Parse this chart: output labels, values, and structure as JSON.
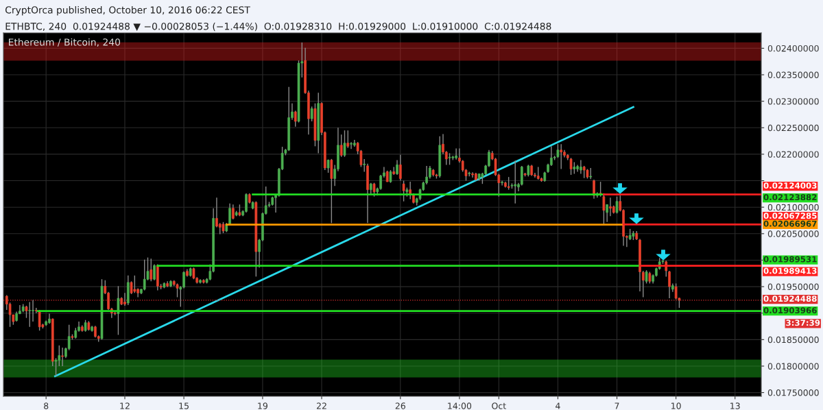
{
  "chart_data": {
    "type": "candlestick",
    "title": "Ethereum / Bitcoin, 240",
    "subtitle": "ETHBTC, 240  0.01924488 ▼ −0.00028053 (−1.44%)  O:0.01928310  H:0.01929000  L:0.01910000  C:0.01924488",
    "annotations": [
      "CryptOrca published, October 10, 2016 06:22 CEST",
      "3:37:39"
    ],
    "x": [
      "2016-09-06T00:00",
      "2016-09-06T04:00",
      "2016-09-06T08:00",
      "2016-09-06T12:00",
      "2016-09-06T16:00",
      "2016-09-06T20:00",
      "2016-09-07T00:00",
      "2016-09-07T04:00",
      "2016-09-07T08:00",
      "2016-09-07T12:00",
      "2016-09-07T16:00",
      "2016-09-07T20:00",
      "2016-09-08T00:00",
      "2016-09-08T04:00",
      "2016-09-08T08:00",
      "2016-09-08T12:00",
      "2016-09-08T16:00",
      "2016-09-08T20:00",
      "2016-09-09T00:00",
      "2016-09-09T04:00",
      "2016-09-09T08:00",
      "2016-09-09T12:00",
      "2016-09-09T16:00",
      "2016-09-09T20:00",
      "2016-09-10T00:00",
      "2016-09-10T04:00",
      "2016-09-10T08:00",
      "2016-09-10T12:00",
      "2016-09-10T16:00",
      "2016-09-10T20:00",
      "2016-09-11T00:00",
      "2016-09-11T04:00",
      "2016-09-11T08:00",
      "2016-09-11T12:00",
      "2016-09-11T16:00",
      "2016-09-11T20:00",
      "2016-09-12T00:00",
      "2016-09-12T04:00",
      "2016-09-12T08:00",
      "2016-09-12T12:00",
      "2016-09-12T16:00",
      "2016-09-12T20:00",
      "2016-09-13T00:00",
      "2016-09-13T04:00",
      "2016-09-13T08:00",
      "2016-09-13T12:00",
      "2016-09-13T16:00",
      "2016-09-13T20:00",
      "2016-09-14T00:00",
      "2016-09-14T04:00",
      "2016-09-14T08:00",
      "2016-09-14T12:00",
      "2016-09-14T16:00",
      "2016-09-14T20:00",
      "2016-09-15T00:00",
      "2016-09-15T04:00",
      "2016-09-15T08:00",
      "2016-09-15T12:00",
      "2016-09-15T16:00",
      "2016-09-15T20:00",
      "2016-09-16T00:00",
      "2016-09-16T04:00",
      "2016-09-16T08:00",
      "2016-09-16T12:00",
      "2016-09-16T16:00",
      "2016-09-16T20:00",
      "2016-09-17T00:00",
      "2016-09-17T04:00",
      "2016-09-17T08:00",
      "2016-09-17T12:00",
      "2016-09-17T16:00",
      "2016-09-17T20:00",
      "2016-09-18T00:00",
      "2016-09-18T04:00",
      "2016-09-18T08:00",
      "2016-09-18T12:00",
      "2016-09-18T16:00",
      "2016-09-18T20:00",
      "2016-09-19T00:00",
      "2016-09-19T04:00",
      "2016-09-19T08:00",
      "2016-09-19T12:00",
      "2016-09-19T16:00",
      "2016-09-19T20:00",
      "2016-09-20T00:00",
      "2016-09-20T04:00",
      "2016-09-20T08:00",
      "2016-09-20T12:00",
      "2016-09-20T16:00",
      "2016-09-20T20:00",
      "2016-09-21T00:00",
      "2016-09-21T04:00",
      "2016-09-21T08:00",
      "2016-09-21T12:00",
      "2016-09-21T16:00",
      "2016-09-21T20:00",
      "2016-09-22T00:00",
      "2016-09-22T04:00",
      "2016-09-22T08:00",
      "2016-09-22T12:00",
      "2016-09-22T16:00",
      "2016-09-22T20:00",
      "2016-09-23T00:00",
      "2016-09-23T04:00",
      "2016-09-23T08:00",
      "2016-09-23T12:00",
      "2016-09-23T16:00",
      "2016-09-23T20:00",
      "2016-09-24T00:00",
      "2016-09-24T04:00",
      "2016-09-24T08:00",
      "2016-09-24T12:00",
      "2016-09-24T16:00",
      "2016-09-24T20:00",
      "2016-09-25T00:00",
      "2016-09-25T04:00",
      "2016-09-25T08:00",
      "2016-09-25T12:00",
      "2016-09-25T16:00",
      "2016-09-25T20:00",
      "2016-09-26T00:00",
      "2016-09-26T04:00",
      "2016-09-26T08:00",
      "2016-09-26T12:00",
      "2016-09-26T16:00",
      "2016-09-26T20:00",
      "2016-09-27T00:00",
      "2016-09-27T04:00",
      "2016-09-27T08:00",
      "2016-09-27T12:00",
      "2016-09-27T16:00",
      "2016-09-27T20:00",
      "2016-09-28T00:00",
      "2016-09-28T04:00",
      "2016-09-28T08:00",
      "2016-09-28T12:00",
      "2016-09-28T16:00",
      "2016-09-28T20:00",
      "2016-09-29T00:00",
      "2016-09-29T04:00",
      "2016-09-29T08:00",
      "2016-09-29T12:00",
      "2016-09-29T16:00",
      "2016-09-29T20:00",
      "2016-09-30T00:00",
      "2016-09-30T04:00",
      "2016-09-30T08:00",
      "2016-09-30T12:00",
      "2016-09-30T16:00",
      "2016-09-30T20:00",
      "2016-10-01T00:00",
      "2016-10-01T04:00",
      "2016-10-01T08:00",
      "2016-10-01T12:00",
      "2016-10-01T16:00",
      "2016-10-01T20:00",
      "2016-10-02T00:00",
      "2016-10-02T04:00",
      "2016-10-02T08:00",
      "2016-10-02T12:00",
      "2016-10-02T16:00",
      "2016-10-02T20:00",
      "2016-10-03T00:00",
      "2016-10-03T04:00",
      "2016-10-03T08:00",
      "2016-10-03T12:00",
      "2016-10-03T16:00",
      "2016-10-03T20:00",
      "2016-10-04T00:00",
      "2016-10-04T04:00",
      "2016-10-04T08:00",
      "2016-10-04T12:00",
      "2016-10-04T16:00",
      "2016-10-04T20:00",
      "2016-10-05T00:00",
      "2016-10-05T04:00",
      "2016-10-05T08:00",
      "2016-10-05T12:00",
      "2016-10-05T16:00",
      "2016-10-05T20:00",
      "2016-10-06T00:00",
      "2016-10-06T04:00",
      "2016-10-06T08:00",
      "2016-10-06T12:00",
      "2016-10-06T16:00",
      "2016-10-06T20:00",
      "2016-10-07T00:00",
      "2016-10-07T04:00",
      "2016-10-07T08:00",
      "2016-10-07T12:00",
      "2016-10-07T16:00",
      "2016-10-07T20:00",
      "2016-10-08T00:00",
      "2016-10-08T04:00",
      "2016-10-08T08:00",
      "2016-10-08T12:00",
      "2016-10-08T16:00",
      "2016-10-08T20:00",
      "2016-10-09T00:00",
      "2016-10-09T04:00",
      "2016-10-09T08:00",
      "2016-10-09T12:00",
      "2016-10-09T16:00",
      "2016-10-09T20:00",
      "2016-10-10T00:00",
      "2016-10-10T04:00"
    ],
    "ohlc": [
      [
        0.01932,
        0.01934,
        0.01906,
        0.01917
      ],
      [
        0.01917,
        0.0192,
        0.01874,
        0.01897
      ],
      [
        0.01897,
        0.01897,
        0.01878,
        0.01884
      ],
      [
        0.01886,
        0.01903,
        0.01884,
        0.01899
      ],
      [
        0.01899,
        0.01915,
        0.01898,
        0.01904
      ],
      [
        0.01904,
        0.01917,
        0.01902,
        0.01912
      ],
      [
        0.01912,
        0.01914,
        0.01891,
        0.01904
      ],
      [
        0.01904,
        0.01921,
        0.01874,
        0.01904
      ],
      [
        0.01904,
        0.01925,
        0.01884,
        0.01905
      ],
      [
        0.01905,
        0.0191,
        0.019,
        0.01904
      ],
      [
        0.01904,
        0.01906,
        0.01867,
        0.01874
      ],
      [
        0.01878,
        0.0188,
        0.01871,
        0.01874
      ],
      [
        0.01878,
        0.01886,
        0.01876,
        0.01884
      ],
      [
        0.01882,
        0.01899,
        0.0188,
        0.01889
      ],
      [
        0.01889,
        0.0189,
        0.018,
        0.01809
      ],
      [
        0.01809,
        0.01815,
        0.01781,
        0.01811
      ],
      [
        0.01811,
        0.01839,
        0.018,
        0.0182
      ],
      [
        0.01819,
        0.01835,
        0.018,
        0.01818
      ],
      [
        0.01818,
        0.01835,
        0.01815,
        0.01833
      ],
      [
        0.01833,
        0.01878,
        0.0183,
        0.01856
      ],
      [
        0.01856,
        0.0186,
        0.0185,
        0.01854
      ],
      [
        0.01854,
        0.01872,
        0.01852,
        0.01867
      ],
      [
        0.01867,
        0.01884,
        0.01865,
        0.01874
      ],
      [
        0.01874,
        0.01877,
        0.01865,
        0.01867
      ],
      [
        0.01867,
        0.01887,
        0.01865,
        0.01882
      ],
      [
        0.01882,
        0.01885,
        0.01867,
        0.01869
      ],
      [
        0.01867,
        0.01876,
        0.01865,
        0.01874
      ],
      [
        0.01874,
        0.01876,
        0.01854,
        0.01856
      ],
      [
        0.01856,
        0.01858,
        0.01846,
        0.01852
      ],
      [
        0.01852,
        0.01964,
        0.0185,
        0.01951
      ],
      [
        0.01951,
        0.01962,
        0.01936,
        0.01938
      ],
      [
        0.01938,
        0.0194,
        0.01906,
        0.01908
      ],
      [
        0.01908,
        0.0191,
        0.01891,
        0.019
      ],
      [
        0.019,
        0.01902,
        0.01896,
        0.01899
      ],
      [
        0.01899,
        0.01951,
        0.01859,
        0.01928
      ],
      [
        0.01928,
        0.0193,
        0.01915,
        0.01917
      ],
      [
        0.01921,
        0.01938,
        0.01914,
        0.01917
      ],
      [
        0.01919,
        0.01971,
        0.01915,
        0.01958
      ],
      [
        0.01958,
        0.0196,
        0.01936,
        0.01938
      ],
      [
        0.01945,
        0.01971,
        0.01938,
        0.01941
      ],
      [
        0.01945,
        0.01947,
        0.0193,
        0.01938
      ],
      [
        0.01938,
        0.01946,
        0.01936,
        0.01945
      ],
      [
        0.01945,
        0.02001,
        0.01943,
        0.01964
      ],
      [
        0.01964,
        0.02005,
        0.01962,
        0.01979
      ],
      [
        0.01982,
        0.02003,
        0.0196,
        0.01964
      ],
      [
        0.01964,
        0.01992,
        0.01962,
        0.0199
      ],
      [
        0.0199,
        0.01992,
        0.01943,
        0.01951
      ],
      [
        0.01951,
        0.01955,
        0.01945,
        0.01949
      ],
      [
        0.01949,
        0.01958,
        0.01947,
        0.01956
      ],
      [
        0.01956,
        0.0196,
        0.01949,
        0.01951
      ],
      [
        0.01951,
        0.01962,
        0.01949,
        0.0196
      ],
      [
        0.0196,
        0.01962,
        0.01951,
        0.01954
      ],
      [
        0.01954,
        0.01956,
        0.0193,
        0.01947
      ],
      [
        0.01945,
        0.01951,
        0.01912,
        0.01949
      ],
      [
        0.01949,
        0.01979,
        0.01947,
        0.01977
      ],
      [
        0.01979,
        0.01983,
        0.01969,
        0.01971
      ],
      [
        0.01971,
        0.01986,
        0.01969,
        0.01984
      ],
      [
        0.01984,
        0.01986,
        0.01964,
        0.01966
      ],
      [
        0.01966,
        0.01968,
        0.01956,
        0.01958
      ],
      [
        0.01958,
        0.01964,
        0.01956,
        0.01962
      ],
      [
        0.01962,
        0.01964,
        0.01956,
        0.01958
      ],
      [
        0.01958,
        0.01966,
        0.01956,
        0.01964
      ],
      [
        0.01964,
        0.01992,
        0.01962,
        0.01979
      ],
      [
        0.01979,
        0.02098,
        0.01977,
        0.02079
      ],
      [
        0.02079,
        0.02118,
        0.02062,
        0.02064
      ],
      [
        0.02068,
        0.0207,
        0.02049,
        0.02062
      ],
      [
        0.02068,
        0.02072,
        0.02051,
        0.02055
      ],
      [
        0.02055,
        0.0207,
        0.02053,
        0.02068
      ],
      [
        0.02068,
        0.02107,
        0.02066,
        0.02098
      ],
      [
        0.02098,
        0.02105,
        0.02077,
        0.02079
      ],
      [
        0.02085,
        0.02093,
        0.02083,
        0.0209
      ],
      [
        0.0209,
        0.02105,
        0.02083,
        0.02085
      ],
      [
        0.02085,
        0.02094,
        0.02083,
        0.02092
      ],
      [
        0.02092,
        0.02126,
        0.0209,
        0.02124
      ],
      [
        0.02124,
        0.02126,
        0.02107,
        0.02109
      ],
      [
        0.02098,
        0.02111,
        0.02096,
        0.02109
      ],
      [
        0.02109,
        0.02111,
        0.01969,
        0.02016
      ],
      [
        0.02016,
        0.0204,
        0.01986,
        0.02038
      ],
      [
        0.02038,
        0.0209,
        0.02036,
        0.02088
      ],
      [
        0.02088,
        0.02139,
        0.02086,
        0.02103
      ],
      [
        0.02103,
        0.0211,
        0.021,
        0.02105
      ],
      [
        0.02105,
        0.0212,
        0.02103,
        0.02118
      ],
      [
        0.02118,
        0.02124,
        0.0209,
        0.02122
      ],
      [
        0.02122,
        0.02174,
        0.0212,
        0.02172
      ],
      [
        0.02172,
        0.02214,
        0.0217,
        0.02202
      ],
      [
        0.02202,
        0.0221,
        0.02198,
        0.02208
      ],
      [
        0.02208,
        0.02327,
        0.02206,
        0.02269
      ],
      [
        0.02269,
        0.02296,
        0.02265,
        0.0228
      ],
      [
        0.0228,
        0.02282,
        0.02252,
        0.02262
      ],
      [
        0.02262,
        0.02377,
        0.0226,
        0.02372
      ],
      [
        0.02372,
        0.02411,
        0.02345,
        0.02375
      ],
      [
        0.02377,
        0.02401,
        0.02314,
        0.02316
      ],
      [
        0.02316,
        0.0232,
        0.02237,
        0.02267
      ],
      [
        0.02267,
        0.0229,
        0.02262,
        0.02286
      ],
      [
        0.02286,
        0.02296,
        0.02215,
        0.02226
      ],
      [
        0.02226,
        0.02316,
        0.02202,
        0.02296
      ],
      [
        0.02296,
        0.02298,
        0.02236,
        0.02241
      ],
      [
        0.02241,
        0.02243,
        0.0217,
        0.02174
      ],
      [
        0.02174,
        0.0219,
        0.02165,
        0.02189
      ],
      [
        0.02189,
        0.02191,
        0.0207,
        0.02154
      ],
      [
        0.02154,
        0.0218,
        0.0214,
        0.02172
      ],
      [
        0.02172,
        0.0225,
        0.02168,
        0.02217
      ],
      [
        0.02217,
        0.02237,
        0.02195,
        0.02198
      ],
      [
        0.02198,
        0.02245,
        0.02195,
        0.02221
      ],
      [
        0.02221,
        0.02245,
        0.02212,
        0.02215
      ],
      [
        0.02219,
        0.02223,
        0.0221,
        0.02219
      ],
      [
        0.02217,
        0.02227,
        0.02214,
        0.02221
      ],
      [
        0.02221,
        0.02223,
        0.022,
        0.02206
      ],
      [
        0.02206,
        0.02208,
        0.02176,
        0.0218
      ],
      [
        0.0218,
        0.02191,
        0.02167,
        0.0218
      ],
      [
        0.02178,
        0.02182,
        0.0207,
        0.02133
      ],
      [
        0.02133,
        0.02146,
        0.02124,
        0.02144
      ],
      [
        0.02144,
        0.02146,
        0.0212,
        0.02129
      ],
      [
        0.02129,
        0.02137,
        0.02122,
        0.02135
      ],
      [
        0.02135,
        0.02161,
        0.02133,
        0.02159
      ],
      [
        0.02159,
        0.02176,
        0.02156,
        0.02165
      ],
      [
        0.02167,
        0.02169,
        0.02148,
        0.02148
      ],
      [
        0.02148,
        0.0217,
        0.02146,
        0.02167
      ],
      [
        0.02167,
        0.02176,
        0.02161,
        0.02163
      ],
      [
        0.02163,
        0.02189,
        0.02161,
        0.0218
      ],
      [
        0.0218,
        0.02199,
        0.0215,
        0.02154
      ],
      [
        0.02144,
        0.0215,
        0.02111,
        0.02131
      ],
      [
        0.02129,
        0.02137,
        0.0212,
        0.02133
      ],
      [
        0.02133,
        0.02148,
        0.02115,
        0.02124
      ],
      [
        0.02124,
        0.02126,
        0.02107,
        0.02109
      ],
      [
        0.02109,
        0.02118,
        0.02103,
        0.02116
      ],
      [
        0.02116,
        0.02135,
        0.02113,
        0.02133
      ],
      [
        0.02133,
        0.02148,
        0.02131,
        0.02146
      ],
      [
        0.02146,
        0.02178,
        0.02143,
        0.02157
      ],
      [
        0.02157,
        0.02178,
        0.02154,
        0.02174
      ],
      [
        0.0217,
        0.02172,
        0.02158,
        0.02161
      ],
      [
        0.02161,
        0.02163,
        0.02154,
        0.02159
      ],
      [
        0.02159,
        0.02234,
        0.02156,
        0.02217
      ],
      [
        0.02219,
        0.02238,
        0.022,
        0.02204
      ],
      [
        0.02204,
        0.02206,
        0.0218,
        0.02191
      ],
      [
        0.02193,
        0.02202,
        0.0218,
        0.02193
      ],
      [
        0.02193,
        0.02197,
        0.02189,
        0.02195
      ],
      [
        0.02193,
        0.02211,
        0.0219,
        0.02197
      ],
      [
        0.02193,
        0.02211,
        0.02184,
        0.02187
      ],
      [
        0.02187,
        0.02189,
        0.02167,
        0.0217
      ],
      [
        0.0217,
        0.02172,
        0.0215,
        0.02159
      ],
      [
        0.02163,
        0.02167,
        0.02158,
        0.02163
      ],
      [
        0.02163,
        0.02166,
        0.02156,
        0.02161
      ],
      [
        0.02163,
        0.02165,
        0.0215,
        0.02152
      ],
      [
        0.02154,
        0.02163,
        0.0215,
        0.02163
      ],
      [
        0.02157,
        0.02165,
        0.02144,
        0.02163
      ],
      [
        0.02163,
        0.0218,
        0.02161,
        0.02178
      ],
      [
        0.02178,
        0.02208,
        0.02176,
        0.02204
      ],
      [
        0.02202,
        0.02206,
        0.02189,
        0.02191
      ],
      [
        0.02191,
        0.02193,
        0.02159,
        0.02161
      ],
      [
        0.02161,
        0.02163,
        0.0212,
        0.02146
      ],
      [
        0.02146,
        0.0215,
        0.02141,
        0.02146
      ],
      [
        0.02146,
        0.02148,
        0.02137,
        0.02139
      ],
      [
        0.02139,
        0.02157,
        0.02133,
        0.02137
      ],
      [
        0.0214,
        0.02145,
        0.02135,
        0.0214
      ],
      [
        0.0214,
        0.02188,
        0.02107,
        0.02143
      ],
      [
        0.02138,
        0.02146,
        0.0213,
        0.02143
      ],
      [
        0.02143,
        0.02178,
        0.02141,
        0.02176
      ],
      [
        0.02163,
        0.02165,
        0.02158,
        0.02161
      ],
      [
        0.02161,
        0.0218,
        0.02158,
        0.02178
      ],
      [
        0.02178,
        0.0218,
        0.02159,
        0.02161
      ],
      [
        0.02161,
        0.02165,
        0.02156,
        0.02159
      ],
      [
        0.02159,
        0.02176,
        0.02152,
        0.02154
      ],
      [
        0.02154,
        0.02156,
        0.02148,
        0.0215
      ],
      [
        0.0215,
        0.02167,
        0.02148,
        0.02165
      ],
      [
        0.02167,
        0.02182,
        0.02165,
        0.0218
      ],
      [
        0.0218,
        0.02215,
        0.02178,
        0.02193
      ],
      [
        0.02193,
        0.02197,
        0.02189,
        0.02193
      ],
      [
        0.02195,
        0.02219,
        0.02193,
        0.02208
      ],
      [
        0.02208,
        0.02219,
        0.02172,
        0.02204
      ],
      [
        0.02204,
        0.02208,
        0.02194,
        0.02198
      ],
      [
        0.02198,
        0.022,
        0.02189,
        0.02193
      ],
      [
        0.02191,
        0.02193,
        0.02161,
        0.02172
      ],
      [
        0.02172,
        0.02185,
        0.02163,
        0.02176
      ],
      [
        0.02172,
        0.0218,
        0.02167,
        0.02177
      ],
      [
        0.0217,
        0.02189,
        0.02163,
        0.02176
      ],
      [
        0.02176,
        0.02178,
        0.02155,
        0.0217
      ],
      [
        0.0217,
        0.02172,
        0.02154,
        0.02157
      ],
      [
        0.02157,
        0.02174,
        0.02153,
        0.02157
      ],
      [
        0.0215,
        0.02152,
        0.02116,
        0.02122
      ],
      [
        0.02122,
        0.02128,
        0.02118,
        0.02126
      ],
      [
        0.02126,
        0.02148,
        0.0212,
        0.02125
      ],
      [
        0.0212,
        0.02124,
        0.02068,
        0.02094
      ],
      [
        0.0209,
        0.02105,
        0.02072,
        0.02105
      ],
      [
        0.02101,
        0.02118,
        0.02083,
        0.02098
      ],
      [
        0.02101,
        0.02103,
        0.02088,
        0.0209
      ],
      [
        0.0209,
        0.0212,
        0.02088,
        0.02111
      ],
      [
        0.02111,
        0.02122,
        0.02092,
        0.02094
      ],
      [
        0.02094,
        0.02096,
        0.02027,
        0.02045
      ],
      [
        0.02045,
        0.02047,
        0.02025,
        0.02043
      ],
      [
        0.0204,
        0.02059,
        0.02038,
        0.02047
      ],
      [
        0.02045,
        0.02055,
        0.02038,
        0.02051
      ],
      [
        0.02051,
        0.02055,
        0.02038,
        0.0204
      ],
      [
        0.02038,
        0.0204,
        0.01941,
        0.01978
      ],
      [
        0.01977,
        0.0198,
        0.0193,
        0.01962
      ],
      [
        0.0196,
        0.01981,
        0.01956,
        0.01978
      ],
      [
        0.01975,
        0.01978,
        0.01956,
        0.0196
      ],
      [
        0.0196,
        0.01973,
        0.01956,
        0.01971
      ],
      [
        0.01971,
        0.01986,
        0.01969,
        0.01984
      ],
      [
        0.01984,
        0.02004,
        0.01982,
        0.01997
      ],
      [
        0.01997,
        0.02,
        0.01993,
        0.01997
      ],
      [
        0.01997,
        0.01999,
        0.01969,
        0.0198
      ],
      [
        0.01978,
        0.0198,
        0.01928,
        0.0195
      ],
      [
        0.01945,
        0.01956,
        0.0194,
        0.01952
      ],
      [
        0.0195,
        0.01956,
        0.01926,
        0.01928
      ],
      [
        0.0192831,
        0.01929,
        0.0191,
        0.01924488
      ]
    ],
    "series": [
      {
        "type": "line",
        "name": "0.02123882",
        "color": "#22dd22",
        "x": [
          "2016-09-18T12:00",
          "2016-10-06T08:00"
        ],
        "values": [
          0.02123882,
          0.02123882
        ]
      },
      {
        "type": "line",
        "name": "0.02124003",
        "color": "#ff2020",
        "x": [
          "2016-10-06T08:00",
          "2016-10-14T08:00"
        ],
        "values": [
          0.02124003,
          0.02124003
        ]
      },
      {
        "type": "line",
        "name": "0.02066967",
        "color": "#ff9900",
        "x": [
          "2016-09-17T04:00",
          "2016-10-07T08:00"
        ],
        "values": [
          0.02066967,
          0.02066967
        ]
      },
      {
        "type": "line",
        "name": "0.02067285",
        "color": "#ff2020",
        "x": [
          "2016-10-07T08:00",
          "2016-10-14T08:00"
        ],
        "values": [
          0.02067285,
          0.02067285
        ]
      },
      {
        "type": "line",
        "name": "0.01989531",
        "color": "#22dd22",
        "x": [
          "2016-09-13T16:00",
          "2016-10-08T04:00"
        ],
        "values": [
          0.01989531,
          0.01989531
        ]
      },
      {
        "type": "line",
        "name": "0.01989413",
        "color": "#ff2020",
        "x": [
          "2016-10-08T04:00",
          "2016-10-14T08:00"
        ],
        "values": [
          0.01989413,
          0.01989413
        ]
      },
      {
        "type": "line",
        "name": "0.01903966",
        "color": "#22dd22",
        "x": [
          "2016-09-07T14:00",
          "2016-10-14T08:00"
        ],
        "values": [
          0.01903966,
          0.01903966
        ]
      },
      {
        "type": "line",
        "color": "#29d9ea",
        "x": [
          "2016-09-08T11:00",
          "2016-10-07T20:00"
        ],
        "values": [
          0.01781,
          0.02289
        ]
      }
    ],
    "ref_lines": [
      {
        "axis": "y",
        "value": 0.01924488,
        "label": "0.01924488",
        "color": "#e03030",
        "line_style": "dotted"
      }
    ],
    "bands": [
      {
        "axis": "y",
        "from": 0.02378,
        "to": 0.0241,
        "color": "#e31e1e"
      },
      {
        "axis": "y",
        "from": 0.0178,
        "to": 0.01811,
        "color": "#22cc22"
      }
    ],
    "xlim": [
      "2016-09-05T20:00",
      "2016-10-14T08:00"
    ],
    "xticks": [
      {
        "value": "2016-09-08",
        "label": "8"
      },
      {
        "value": "2016-09-12",
        "label": "12"
      },
      {
        "value": "2016-09-15",
        "label": "15"
      },
      {
        "value": "2016-09-19",
        "label": "19"
      },
      {
        "value": "2016-09-22",
        "label": "22"
      },
      {
        "value": "2016-09-26",
        "label": "26"
      },
      {
        "value": "2016-09-29",
        "label": "14:00"
      },
      {
        "value": "2016-10-01",
        "label": "Oct"
      },
      {
        "value": "2016-10-04",
        "label": "4"
      },
      {
        "value": "2016-10-07",
        "label": "7"
      },
      {
        "value": "2016-10-10",
        "label": "10"
      },
      {
        "value": "2016-10-13",
        "label": "13"
      }
    ],
    "ylim": [
      0.01743,
      0.02429
    ],
    "yticks": [
      {
        "value": 0.0175,
        "label": "0.01750000"
      },
      {
        "value": 0.018,
        "label": "0.01800000"
      },
      {
        "value": 0.0185,
        "label": "0.01850000"
      },
      {
        "value": 0.019,
        "label": null
      },
      {
        "value": 0.0195,
        "label": "0.01950000"
      },
      {
        "value": 0.02,
        "label": null
      },
      {
        "value": 0.0205,
        "label": "0.02050000"
      },
      {
        "value": 0.021,
        "label": "0.02100000"
      },
      {
        "value": 0.0215,
        "label": null
      },
      {
        "value": 0.022,
        "label": "0.02200000"
      },
      {
        "value": 0.0225,
        "label": "0.02250000"
      },
      {
        "value": 0.023,
        "label": "0.02300000"
      },
      {
        "value": 0.0235,
        "label": "0.02350000"
      },
      {
        "value": 0.024,
        "label": "0.02400000"
      }
    ],
    "grid": true
  }
}
